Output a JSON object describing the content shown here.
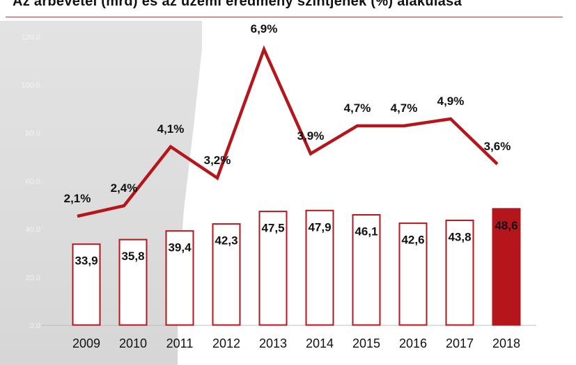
{
  "chart_data": {
    "type": "bar+line",
    "title": "Az árbevétel (mrd) és az üzemi eredmény szintjének (%) alakulása",
    "categories": [
      "2009",
      "2010",
      "2011",
      "2012",
      "2013",
      "2014",
      "2015",
      "2016",
      "2017",
      "2018"
    ],
    "bar_values": [
      33.9,
      35.8,
      39.4,
      42.3,
      47.5,
      47.9,
      46.1,
      42.6,
      43.8,
      48.6
    ],
    "bar_labels": [
      "33,9",
      "35,8",
      "39,4",
      "42,3",
      "47,5",
      "47,9",
      "46,1",
      "42,6",
      "43,8",
      "48,6"
    ],
    "line_values": [
      2.1,
      2.4,
      4.1,
      3.2,
      6.9,
      3.9,
      4.7,
      4.7,
      4.9,
      3.6
    ],
    "line_labels": [
      "2,1%",
      "2,4%",
      "4,1%",
      "3,2%",
      "6,9%",
      "3,9%",
      "4,7%",
      "4,7%",
      "4,9%",
      "3,6%"
    ],
    "y_ticks": [
      "0.0",
      "20.0",
      "40.0",
      "60.0",
      "80.0",
      "100.0",
      "120.0"
    ],
    "ylim": [
      0,
      140
    ],
    "highlight_index": 9,
    "colors": {
      "accent": "#b5161b",
      "bar_outline": "#b5161b",
      "bar_fill": "#ffffff",
      "highlight_fill": "#b5161b",
      "highlight_label": "#ffffff"
    }
  }
}
